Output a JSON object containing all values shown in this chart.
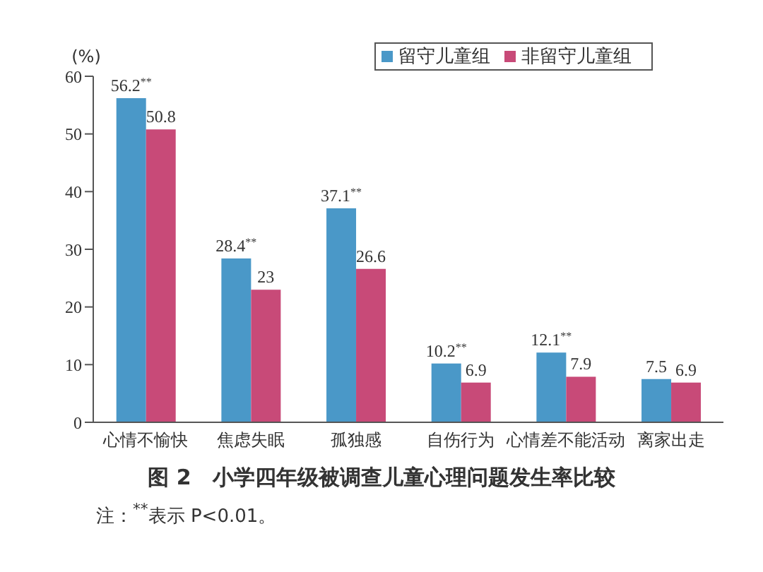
{
  "chart_data": {
    "type": "bar",
    "title": "图 2　小学四年级被调查儿童心理问题发生率比较",
    "ylabel": "(%)",
    "annotations": [
      "注：$^{**}$表示 P<0.01。"
    ],
    "categories": [
      "心情不愉快",
      "焦虑失眠",
      "孤独感",
      "自伤行为",
      "心情差不能活动",
      "离家出走"
    ],
    "series": [
      {
        "name": "留守儿童组",
        "color": "#4a98c8",
        "values": [
          56.2,
          28.4,
          37.1,
          10.2,
          12.1,
          7.5
        ],
        "value_labels": [
          "56.2$^{**}$",
          "28.4$^{**}$",
          "37.1$^{**}$",
          "10.2$^{**}$",
          "12.1$^{**}$",
          "7.5"
        ]
      },
      {
        "name": "非留守儿童组",
        "color": "#c84a78",
        "values": [
          50.8,
          23,
          26.6,
          6.9,
          7.9,
          6.9
        ],
        "value_labels": [
          "50.8",
          "23",
          "26.6",
          "6.9",
          "7.9",
          "6.9"
        ]
      }
    ],
    "ylim": [
      0,
      60
    ],
    "yticks": [
      0,
      10,
      20,
      30,
      40,
      50,
      60
    ],
    "grid": false,
    "legend": "top right"
  }
}
